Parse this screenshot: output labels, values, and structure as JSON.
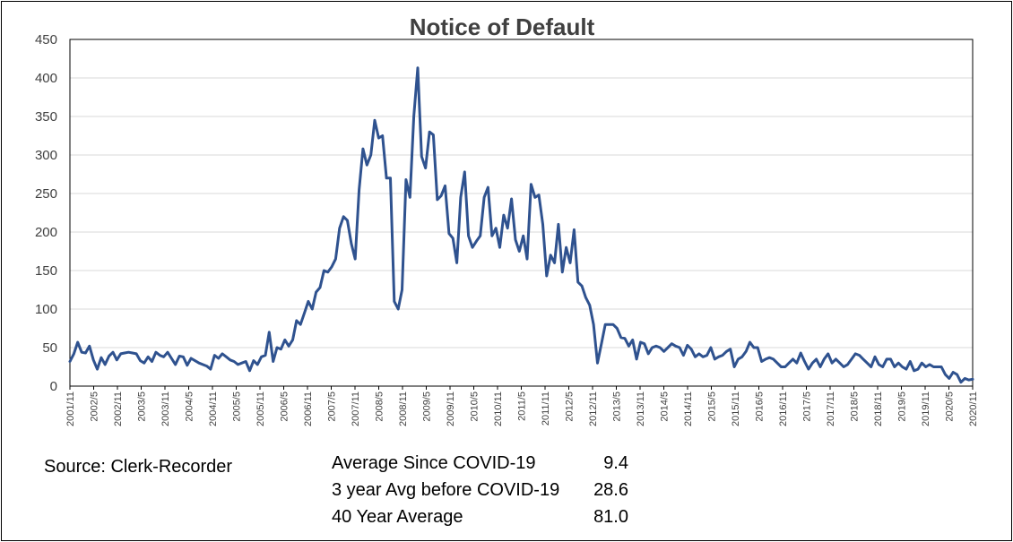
{
  "chart_data": {
    "type": "line",
    "title": "Notice of Default",
    "xlabel": "",
    "ylabel": "",
    "ylim": [
      0,
      450
    ],
    "yticks": [
      "0",
      "50",
      "100",
      "150",
      "200",
      "250",
      "300",
      "350",
      "400",
      "450"
    ],
    "xticks": [
      "2001/11",
      "2002/5",
      "2002/11",
      "2003/5",
      "2003/11",
      "2004/5",
      "2004/11",
      "2005/5",
      "2005/11",
      "2006/5",
      "2006/11",
      "2007/5",
      "2007/11",
      "2008/5",
      "2008/11",
      "2009/5",
      "2009/11",
      "2010/5",
      "2010/11",
      "2011/5",
      "2011/11",
      "2012/5",
      "2012/11",
      "2013/5",
      "2013/11",
      "2014/5",
      "2014/11",
      "2015/5",
      "2015/11",
      "2016/5",
      "2016/11",
      "2017/5",
      "2017/11",
      "2018/5",
      "2018/11",
      "2019/5",
      "2019/11",
      "2020/5",
      "2020/11"
    ],
    "grid": true,
    "legend": "none",
    "line_color": "#2f528f",
    "series": [
      {
        "values": [
          32,
          42,
          57,
          44,
          43,
          52,
          34,
          22,
          37,
          28,
          39,
          44,
          34,
          42,
          43,
          44,
          43,
          42,
          33,
          30,
          38,
          32,
          44,
          40,
          38,
          44,
          36,
          28,
          39,
          38,
          27,
          36,
          33,
          30,
          28,
          26,
          22,
          40,
          36,
          42,
          38,
          34,
          32,
          28,
          30,
          32,
          20,
          33,
          28,
          38,
          40,
          70,
          32,
          50,
          48,
          60,
          52,
          60,
          85,
          80,
          95,
          110,
          100,
          122,
          128,
          150,
          148,
          155,
          165,
          205,
          220,
          215,
          185,
          165,
          255,
          308,
          287,
          300,
          345,
          322,
          325,
          270,
          270,
          110,
          100,
          125,
          268,
          245,
          350,
          413,
          298,
          283,
          330,
          326,
          242,
          247,
          260,
          198,
          192,
          160,
          245,
          278,
          195,
          180,
          188,
          195,
          245,
          258,
          195,
          205,
          180,
          222,
          205,
          243,
          190,
          175,
          195,
          165,
          262,
          245,
          248,
          210,
          143,
          170,
          160,
          210,
          148,
          180,
          160,
          203,
          135,
          130,
          115,
          105,
          80,
          30,
          55,
          80,
          80,
          80,
          75,
          63,
          62,
          52,
          60,
          35,
          57,
          55,
          42,
          50,
          52,
          50,
          45,
          50,
          55,
          52,
          50,
          40,
          53,
          48,
          38,
          42,
          38,
          40,
          50,
          35,
          38,
          40,
          45,
          48,
          25,
          35,
          38,
          45,
          57,
          50,
          50,
          32,
          35,
          37,
          35,
          30,
          25,
          25,
          30,
          35,
          30,
          43,
          32,
          22,
          30,
          35,
          25,
          35,
          42,
          30,
          35,
          30,
          25,
          28,
          35,
          42,
          40,
          35,
          30,
          25,
          38,
          28,
          25,
          35,
          35,
          25,
          30,
          25,
          22,
          32,
          20,
          22,
          30,
          25,
          28,
          25,
          25,
          25,
          15,
          10,
          18,
          15,
          5,
          10,
          8,
          9
        ]
      }
    ]
  },
  "source_text": "Source: Clerk-Recorder",
  "stats": [
    {
      "label": "Average Since COVID-19",
      "value": "9.4"
    },
    {
      "label": "3 year Avg before COVID-19",
      "value": "28.6"
    },
    {
      "label": "40 Year Average",
      "value": "81.0"
    }
  ]
}
